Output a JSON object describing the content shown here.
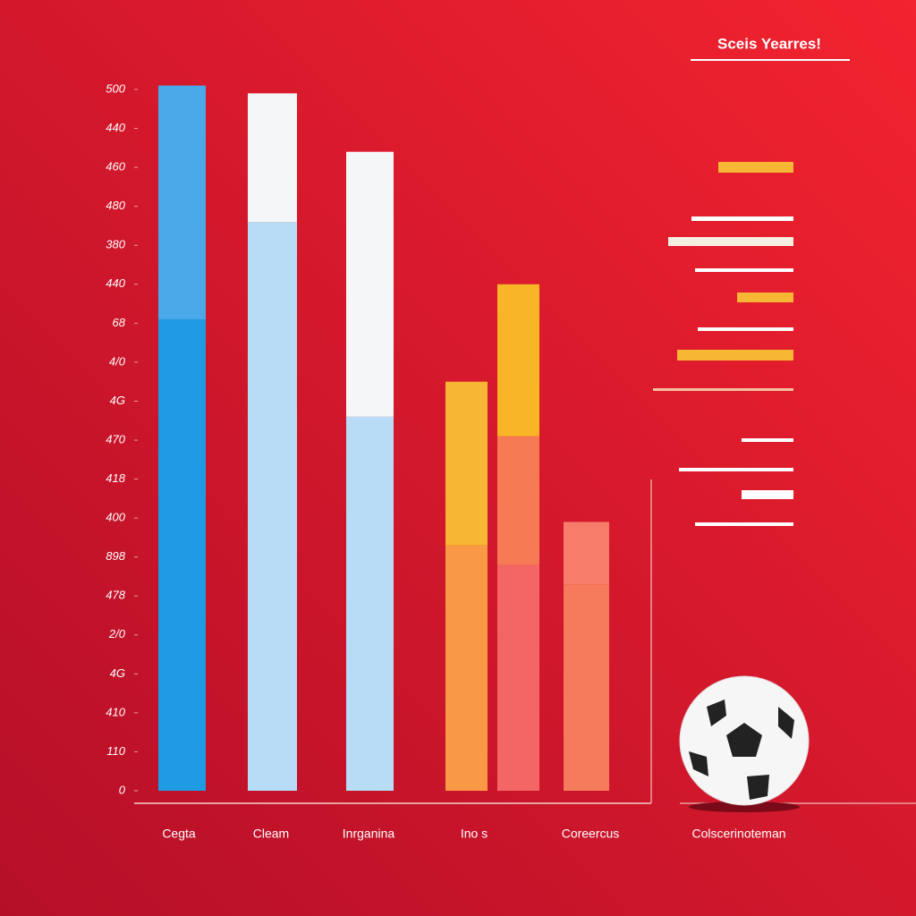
{
  "chart_data": {
    "type": "stacked-bar",
    "title": "Sceis Yearres!",
    "categories": [
      "Cegta",
      "Cleam",
      "Inrganina",
      "Ino s",
      null,
      "Coreercus"
    ],
    "footer_label": "Colscerinoteman",
    "bars": [
      {
        "values": [
          12.1,
          6.0
        ],
        "colors": [
          "#1e9be3",
          "#4aa9e8"
        ]
      },
      {
        "values": [
          14.6,
          3.3
        ],
        "colors": [
          "#b8dcf5",
          "#f4f6f8"
        ]
      },
      {
        "values": [
          9.6,
          6.8
        ],
        "colors": [
          "#b8dcf5",
          "#f4f6f8"
        ]
      },
      {
        "values": [
          6.3,
          4.2
        ],
        "colors": [
          "#f99945",
          "#f7b734"
        ]
      },
      {
        "values": [
          5.8,
          3.3,
          3.9
        ],
        "colors": [
          "#f46666",
          "#f67b55",
          "#f8b526"
        ]
      },
      {
        "values": [
          5.3,
          1.6
        ],
        "colors": [
          "#f67a5c",
          "#f87c6a"
        ]
      }
    ],
    "ylim": [
      0,
      18
    ],
    "yticks": [
      {
        "value": 0,
        "label": "0"
      },
      {
        "value": 1,
        "label": "110"
      },
      {
        "value": 2,
        "label": "410"
      },
      {
        "value": 3,
        "label": "4G"
      },
      {
        "value": 4,
        "label": "2/0"
      },
      {
        "value": 5,
        "label": "478"
      },
      {
        "value": 6,
        "label": "898"
      },
      {
        "value": 7,
        "label": "400"
      },
      {
        "value": 8,
        "label": "418"
      },
      {
        "value": 9,
        "label": "470"
      },
      {
        "value": 10,
        "label": "4G"
      },
      {
        "value": 11,
        "label": "4/0"
      },
      {
        "value": 12,
        "label": "68"
      },
      {
        "value": 13,
        "label": "440"
      },
      {
        "value": 14,
        "label": "380"
      },
      {
        "value": 15,
        "label": "480"
      },
      {
        "value": 16,
        "label": "460"
      },
      {
        "value": 17,
        "label": "440"
      },
      {
        "value": 18,
        "label": "500"
      }
    ]
  }
}
